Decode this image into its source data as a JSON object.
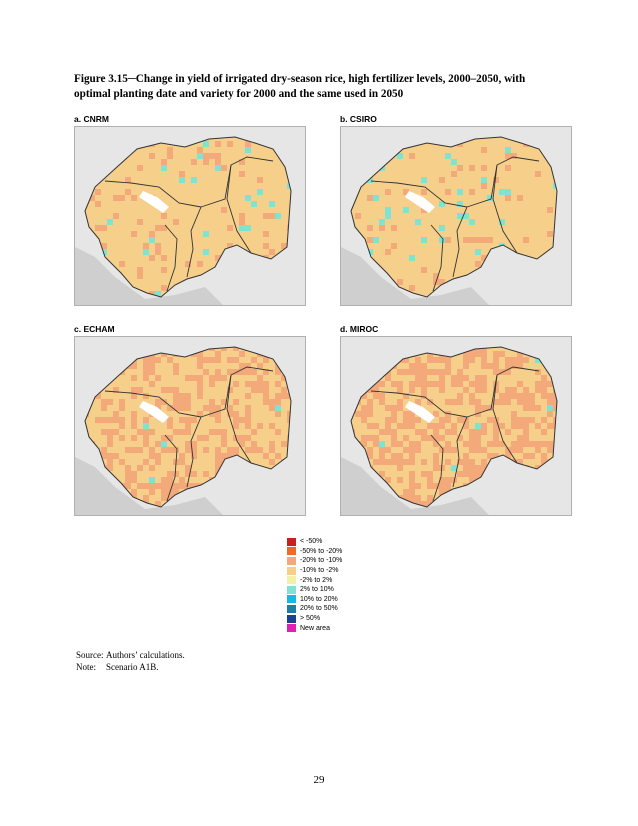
{
  "caption": "Figure 3.15─Change in yield of irrigated dry-season rice, high fertilizer levels, 2000–2050, with optimal planting date and variety for 2000 and the same used in 2050",
  "panels": [
    {
      "label": "a. CNRM",
      "scenario": "cnrm"
    },
    {
      "label": "b. CSIRO",
      "scenario": "csiro"
    },
    {
      "label": "c. ECHAM",
      "scenario": "echam"
    },
    {
      "label": "d. MIROC",
      "scenario": "miroc"
    }
  ],
  "legend": [
    {
      "label": "< -50%",
      "color": "#c0241c"
    },
    {
      "label": "-50% to -20%",
      "color": "#ef6a2a"
    },
    {
      "label": "-20% to -10%",
      "color": "#f4a97a"
    },
    {
      "label": "-10% to -2%",
      "color": "#f6cf8a"
    },
    {
      "label": "-2% to 2%",
      "color": "#f3f1a8"
    },
    {
      "label": "2% to 10%",
      "color": "#7fe3d2"
    },
    {
      "label": "10% to 20%",
      "color": "#19b7e6"
    },
    {
      "label": "20% to 50%",
      "color": "#1d7fa6"
    },
    {
      "label": "> 50%",
      "color": "#1d3f8f"
    },
    {
      "label": "New area",
      "color": "#e01fb3"
    }
  ],
  "notes": [
    {
      "key": "Source:",
      "text": "Authors’ calculations."
    },
    {
      "key": "Note:",
      "text": "Scenario A1B."
    }
  ],
  "page_number": "29"
}
